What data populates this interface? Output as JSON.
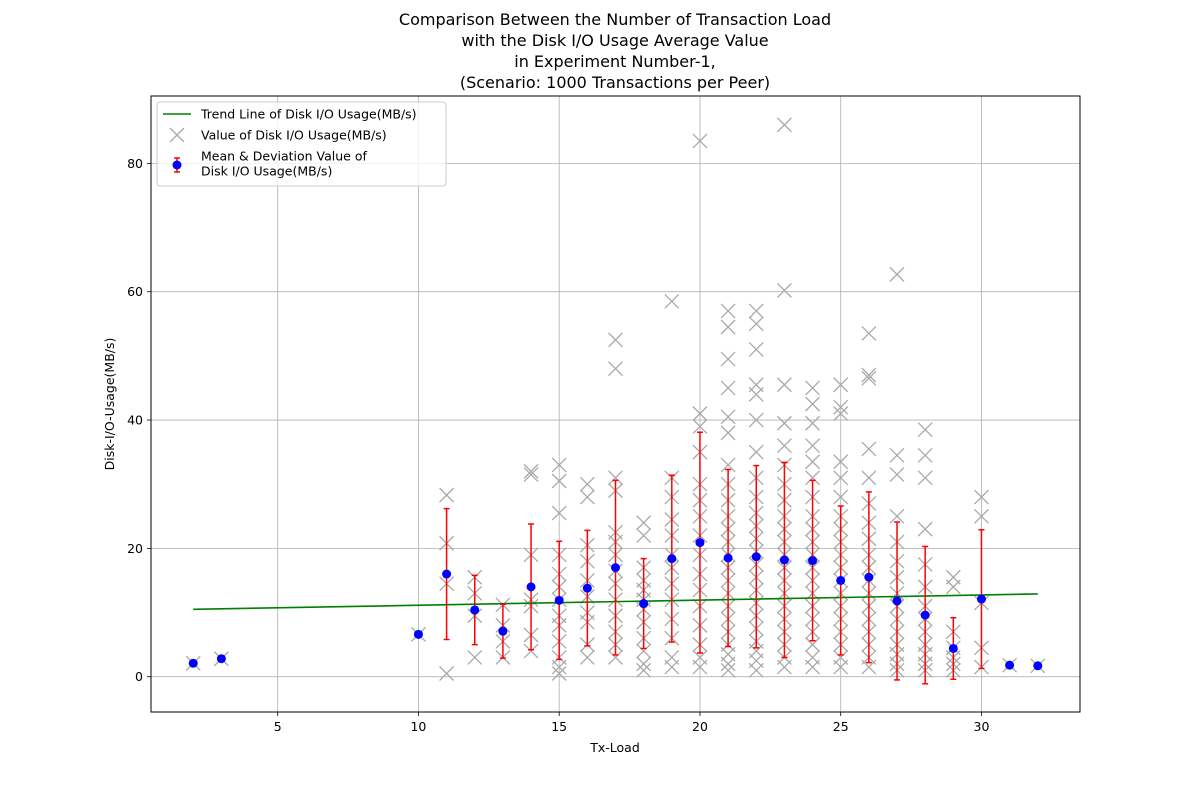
{
  "chart_data": {
    "type": "scatter",
    "title_lines": [
      "Comparison Between the Number of Transaction Load",
      "with the Disk I/O Usage Average Value",
      "in Experiment Number-1,",
      "(Scenario: 1000 Transactions per Peer)"
    ],
    "xlabel": "Tx-Load",
    "ylabel": "Disk-I/O-Usage(MB/s)",
    "xlim": [
      0.5,
      33.5
    ],
    "ylim": [
      -5.5,
      90.5
    ],
    "xticks": [
      5,
      10,
      15,
      20,
      25,
      30
    ],
    "yticks": [
      0,
      20,
      40,
      60,
      80
    ],
    "grid": true,
    "legend_position": "top-left",
    "colors": {
      "trend": "#008000",
      "values": "#a9a9a9",
      "mean": "#0000ff",
      "errorbar": "#ff0000",
      "grid": "#b0b0b0"
    },
    "legend": [
      "Trend Line of Disk I/O Usage(MB/s)",
      "Value of Disk I/O Usage(MB/s)",
      "Mean & Deviation Value of\nDisk I/O Usage(MB/s)"
    ],
    "trend_line": {
      "x": [
        2,
        32
      ],
      "y": [
        10.5,
        12.9
      ]
    },
    "mean_std": [
      {
        "x": 2,
        "mean": 2.1,
        "std": 0
      },
      {
        "x": 3,
        "mean": 2.8,
        "std": 0
      },
      {
        "x": 10,
        "mean": 6.6,
        "std": 0
      },
      {
        "x": 11,
        "mean": 16.0,
        "std": 10.2
      },
      {
        "x": 12,
        "mean": 10.4,
        "std": 5.4
      },
      {
        "x": 13,
        "mean": 7.1,
        "std": 4.2
      },
      {
        "x": 14,
        "mean": 14.0,
        "std": 9.8
      },
      {
        "x": 15,
        "mean": 11.9,
        "std": 9.2
      },
      {
        "x": 16,
        "mean": 13.8,
        "std": 9.0
      },
      {
        "x": 17,
        "mean": 17.0,
        "std": 13.6
      },
      {
        "x": 18,
        "mean": 11.4,
        "std": 7.0
      },
      {
        "x": 19,
        "mean": 18.4,
        "std": 13.0
      },
      {
        "x": 20,
        "mean": 20.9,
        "std": 17.2
      },
      {
        "x": 21,
        "mean": 18.5,
        "std": 13.8
      },
      {
        "x": 22,
        "mean": 18.7,
        "std": 14.2
      },
      {
        "x": 23,
        "mean": 18.2,
        "std": 15.2
      },
      {
        "x": 24,
        "mean": 18.1,
        "std": 12.5
      },
      {
        "x": 25,
        "mean": 15.0,
        "std": 11.6
      },
      {
        "x": 26,
        "mean": 15.5,
        "std": 13.3
      },
      {
        "x": 27,
        "mean": 11.8,
        "std": 12.3
      },
      {
        "x": 28,
        "mean": 9.6,
        "std": 10.7
      },
      {
        "x": 29,
        "mean": 4.4,
        "std": 4.8
      },
      {
        "x": 30,
        "mean": 12.1,
        "std": 10.8
      },
      {
        "x": 31,
        "mean": 1.8,
        "std": 0
      },
      {
        "x": 32,
        "mean": 1.7,
        "std": 0
      }
    ],
    "values": [
      {
        "x": 2,
        "y": [
          2.1
        ]
      },
      {
        "x": 3,
        "y": [
          2.8
        ]
      },
      {
        "x": 10,
        "y": [
          6.6
        ]
      },
      {
        "x": 11,
        "y": [
          0.5,
          14.5,
          20.8,
          28.3
        ]
      },
      {
        "x": 12,
        "y": [
          3.0,
          9.5,
          13.0,
          15.5
        ]
      },
      {
        "x": 13,
        "y": [
          3.0,
          5.5,
          8.0,
          11.2
        ]
      },
      {
        "x": 14,
        "y": [
          4.0,
          6.5,
          11.0,
          12.0,
          19.0,
          31.5,
          32.0
        ]
      },
      {
        "x": 15,
        "y": [
          0.5,
          1.5,
          3.0,
          5.5,
          8.0,
          9.5,
          12.0,
          14.0,
          16.0,
          19.0,
          25.5,
          30.5,
          33.0
        ]
      },
      {
        "x": 16,
        "y": [
          3.0,
          5.0,
          8.5,
          10.0,
          12.5,
          15.0,
          18.0,
          20.5,
          28.0,
          30.0
        ]
      },
      {
        "x": 17,
        "y": [
          3.0,
          5.0,
          7.0,
          9.5,
          12.0,
          14.5,
          16.5,
          19.0,
          21.0,
          22.5,
          29.0,
          31.0,
          48.0,
          52.5
        ]
      },
      {
        "x": 18,
        "y": [
          1.0,
          2.0,
          4.0,
          6.0,
          8.5,
          10.5,
          12.0,
          13.5,
          15.0,
          17.0,
          22.0,
          24.0
        ]
      },
      {
        "x": 19,
        "y": [
          1.5,
          3.0,
          6.0,
          9.0,
          12.0,
          14.5,
          17.0,
          19.0,
          22.0,
          24.5,
          28.0,
          31.0,
          58.5
        ]
      },
      {
        "x": 20,
        "y": [
          1.5,
          3.0,
          5.0,
          8.0,
          11.0,
          13.5,
          16.0,
          19.0,
          22.0,
          25.0,
          27.5,
          30.0,
          35.0,
          39.0,
          41.0,
          83.5
        ]
      },
      {
        "x": 21,
        "y": [
          1.0,
          2.0,
          3.5,
          5.0,
          7.0,
          9.0,
          11.0,
          13.0,
          15.0,
          17.0,
          19.0,
          21.0,
          23.0,
          25.0,
          27.5,
          30.0,
          33.0,
          38.0,
          40.5,
          45.0,
          49.5,
          54.5,
          57.0
        ]
      },
      {
        "x": 22,
        "y": [
          1.0,
          2.5,
          4.0,
          5.5,
          7.5,
          9.5,
          11.5,
          13.5,
          15.5,
          17.5,
          19.5,
          21.5,
          23.5,
          25.5,
          28.0,
          31.0,
          35.0,
          40.0,
          44.0,
          45.5,
          51.0,
          55.0,
          57.0
        ]
      },
      {
        "x": 23,
        "y": [
          1.5,
          3.0,
          5.0,
          7.0,
          9.0,
          11.0,
          13.0,
          15.0,
          17.0,
          19.0,
          21.0,
          23.0,
          25.0,
          27.5,
          30.0,
          33.0,
          36.0,
          39.5,
          45.5,
          60.2,
          86.0
        ]
      },
      {
        "x": 24,
        "y": [
          1.5,
          3.0,
          5.0,
          7.0,
          9.0,
          11.0,
          13.0,
          15.0,
          17.0,
          19.0,
          21.0,
          23.0,
          25.0,
          28.0,
          31.0,
          33.5,
          36.0,
          39.5,
          42.5,
          45.0
        ]
      },
      {
        "x": 25,
        "y": [
          1.5,
          3.0,
          5.0,
          7.0,
          9.0,
          11.0,
          13.0,
          15.0,
          17.0,
          19.0,
          21.0,
          23.0,
          25.0,
          28.0,
          31.0,
          33.5,
          41.0,
          42.0,
          45.5
        ]
      },
      {
        "x": 26,
        "y": [
          1.5,
          3.0,
          5.0,
          7.0,
          9.0,
          11.0,
          13.0,
          15.0,
          17.0,
          19.0,
          21.5,
          24.0,
          27.0,
          31.0,
          35.5,
          46.5,
          47.0,
          53.5
        ]
      },
      {
        "x": 27,
        "y": [
          1.0,
          2.0,
          3.5,
          5.0,
          7.0,
          9.0,
          11.0,
          13.0,
          15.5,
          18.0,
          21.0,
          25.0,
          31.5,
          34.5,
          62.7
        ]
      },
      {
        "x": 28,
        "y": [
          1.0,
          2.0,
          3.5,
          5.0,
          7.0,
          9.0,
          11.0,
          14.0,
          17.5,
          23.0,
          31.0,
          34.5,
          38.5
        ]
      },
      {
        "x": 29,
        "y": [
          1.0,
          2.0,
          3.0,
          4.5,
          7.0,
          14.0,
          15.5
        ]
      },
      {
        "x": 30,
        "y": [
          1.5,
          4.5,
          11.5,
          25.0,
          28.0
        ]
      },
      {
        "x": 31,
        "y": [
          1.8
        ]
      },
      {
        "x": 32,
        "y": [
          1.7
        ]
      }
    ]
  }
}
